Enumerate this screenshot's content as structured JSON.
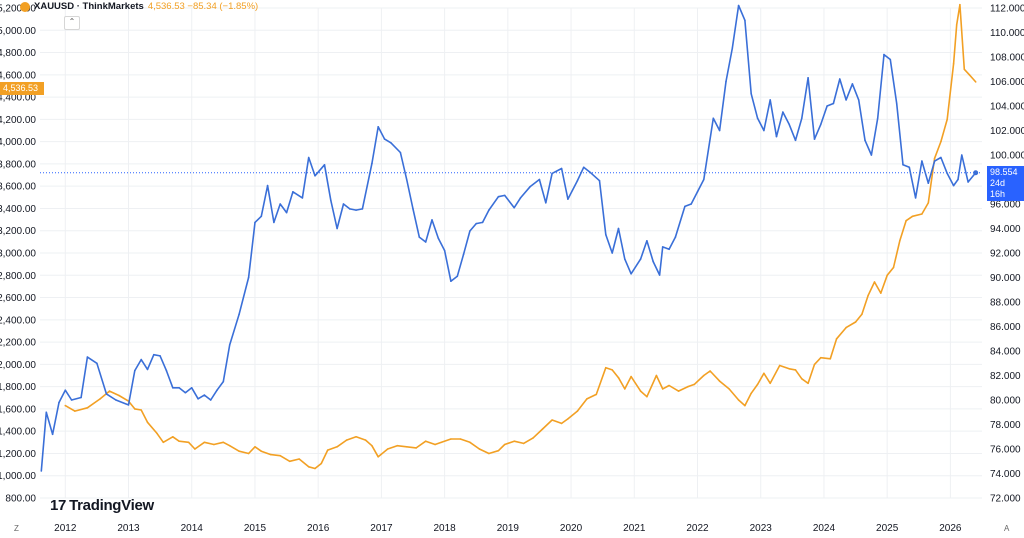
{
  "legend": {
    "symbol": "XAUUSD · ThinkMarkets",
    "value": "4,536.53 −85.34 (−1.85%)"
  },
  "badges": {
    "gold_price": "4,536.53",
    "dxy_price": "98.554",
    "dxy_countdown": "24d 16h"
  },
  "logo": {
    "mark": "17",
    "text": "TradingView"
  },
  "corners": {
    "left": "Z",
    "right": "A"
  },
  "colors": {
    "gold": "#f2a024",
    "dxy": "#3a6fd8",
    "grid": "#eef0f3",
    "price_line": "#2962ff"
  },
  "chart_data": {
    "type": "line",
    "x_ticks": [
      "2012",
      "2013",
      "2014",
      "2015",
      "2016",
      "2017",
      "2018",
      "2019",
      "2020",
      "2021",
      "2022",
      "2023",
      "2024",
      "2025",
      "2026"
    ],
    "left_axis": {
      "ticks": [
        "800.00",
        "1,000.00",
        "1,200.00",
        "1,400.00",
        "1,600.00",
        "1,800.00",
        "2,000.00",
        "2,200.00",
        "2,400.00",
        "2,600.00",
        "2,800.00",
        "3,000.00",
        "3,200.00",
        "3,400.00",
        "3,600.00",
        "3,800.00",
        "4,000.00",
        "4,200.00",
        "4,400.00",
        "4,600.00",
        "4,800.00",
        "5,000.00",
        "5,200.00"
      ],
      "range": [
        800,
        5200
      ]
    },
    "right_axis": {
      "ticks": [
        "72.000",
        "74.000",
        "76.000",
        "78.000",
        "80.000",
        "82.000",
        "84.000",
        "86.000",
        "88.000",
        "90.000",
        "92.000",
        "94.000",
        "96.000",
        "98.000",
        "100.000",
        "102.000",
        "104.000",
        "106.000",
        "108.000",
        "110.000",
        "112.000"
      ],
      "range": [
        72,
        112
      ]
    },
    "x_range": [
      2011.6,
      2026.5
    ],
    "price_line_value": 98.554,
    "series": [
      {
        "axis": "left",
        "color": "#f2a024",
        "points": [
          [
            2012.0,
            1630
          ],
          [
            2012.15,
            1580
          ],
          [
            2012.35,
            1610
          ],
          [
            2012.55,
            1690
          ],
          [
            2012.7,
            1760
          ],
          [
            2012.85,
            1720
          ],
          [
            2013.0,
            1670
          ],
          [
            2013.1,
            1600
          ],
          [
            2013.2,
            1590
          ],
          [
            2013.3,
            1480
          ],
          [
            2013.45,
            1380
          ],
          [
            2013.55,
            1300
          ],
          [
            2013.7,
            1350
          ],
          [
            2013.8,
            1310
          ],
          [
            2013.95,
            1300
          ],
          [
            2014.05,
            1240
          ],
          [
            2014.2,
            1300
          ],
          [
            2014.35,
            1280
          ],
          [
            2014.5,
            1300
          ],
          [
            2014.6,
            1270
          ],
          [
            2014.75,
            1220
          ],
          [
            2014.9,
            1200
          ],
          [
            2015.0,
            1260
          ],
          [
            2015.1,
            1220
          ],
          [
            2015.25,
            1190
          ],
          [
            2015.4,
            1180
          ],
          [
            2015.55,
            1130
          ],
          [
            2015.7,
            1150
          ],
          [
            2015.85,
            1080
          ],
          [
            2015.95,
            1065
          ],
          [
            2016.05,
            1110
          ],
          [
            2016.15,
            1230
          ],
          [
            2016.3,
            1260
          ],
          [
            2016.45,
            1320
          ],
          [
            2016.6,
            1350
          ],
          [
            2016.75,
            1320
          ],
          [
            2016.85,
            1270
          ],
          [
            2016.95,
            1170
          ],
          [
            2017.1,
            1240
          ],
          [
            2017.25,
            1270
          ],
          [
            2017.4,
            1260
          ],
          [
            2017.55,
            1250
          ],
          [
            2017.7,
            1310
          ],
          [
            2017.85,
            1280
          ],
          [
            2017.95,
            1300
          ],
          [
            2018.1,
            1330
          ],
          [
            2018.25,
            1330
          ],
          [
            2018.4,
            1300
          ],
          [
            2018.55,
            1240
          ],
          [
            2018.7,
            1200
          ],
          [
            2018.85,
            1225
          ],
          [
            2018.95,
            1280
          ],
          [
            2019.1,
            1310
          ],
          [
            2019.25,
            1290
          ],
          [
            2019.4,
            1340
          ],
          [
            2019.55,
            1420
          ],
          [
            2019.7,
            1500
          ],
          [
            2019.85,
            1470
          ],
          [
            2019.95,
            1510
          ],
          [
            2020.1,
            1580
          ],
          [
            2020.25,
            1690
          ],
          [
            2020.4,
            1730
          ],
          [
            2020.55,
            1970
          ],
          [
            2020.65,
            1950
          ],
          [
            2020.75,
            1880
          ],
          [
            2020.85,
            1780
          ],
          [
            2020.95,
            1890
          ],
          [
            2021.1,
            1760
          ],
          [
            2021.2,
            1710
          ],
          [
            2021.35,
            1900
          ],
          [
            2021.45,
            1780
          ],
          [
            2021.55,
            1810
          ],
          [
            2021.7,
            1760
          ],
          [
            2021.85,
            1800
          ],
          [
            2021.95,
            1820
          ],
          [
            2022.1,
            1900
          ],
          [
            2022.2,
            1940
          ],
          [
            2022.35,
            1850
          ],
          [
            2022.5,
            1780
          ],
          [
            2022.65,
            1680
          ],
          [
            2022.75,
            1630
          ],
          [
            2022.85,
            1740
          ],
          [
            2022.95,
            1820
          ],
          [
            2023.05,
            1920
          ],
          [
            2023.15,
            1830
          ],
          [
            2023.3,
            1990
          ],
          [
            2023.45,
            1960
          ],
          [
            2023.55,
            1950
          ],
          [
            2023.65,
            1870
          ],
          [
            2023.75,
            1830
          ],
          [
            2023.85,
            2000
          ],
          [
            2023.95,
            2060
          ],
          [
            2024.1,
            2050
          ],
          [
            2024.2,
            2230
          ],
          [
            2024.35,
            2330
          ],
          [
            2024.5,
            2380
          ],
          [
            2024.6,
            2450
          ],
          [
            2024.7,
            2620
          ],
          [
            2024.8,
            2740
          ],
          [
            2024.9,
            2640
          ],
          [
            2025.0,
            2800
          ],
          [
            2025.1,
            2870
          ],
          [
            2025.2,
            3110
          ],
          [
            2025.3,
            3290
          ],
          [
            2025.4,
            3330
          ],
          [
            2025.55,
            3350
          ],
          [
            2025.65,
            3450
          ],
          [
            2025.75,
            3850
          ],
          [
            2025.85,
            4000
          ],
          [
            2025.95,
            4200
          ],
          [
            2026.05,
            4700
          ],
          [
            2026.1,
            5050
          ],
          [
            2026.15,
            5230
          ],
          [
            2026.22,
            4650
          ],
          [
            2026.3,
            4600
          ],
          [
            2026.4,
            4536.53
          ]
        ]
      },
      {
        "axis": "right",
        "color": "#3a6fd8",
        "points": [
          [
            2011.62,
            74.2
          ],
          [
            2011.7,
            79.0
          ],
          [
            2011.8,
            77.2
          ],
          [
            2011.9,
            79.8
          ],
          [
            2012.0,
            80.8
          ],
          [
            2012.1,
            80.0
          ],
          [
            2012.25,
            80.2
          ],
          [
            2012.35,
            83.5
          ],
          [
            2012.5,
            83.0
          ],
          [
            2012.65,
            80.5
          ],
          [
            2012.8,
            80.0
          ],
          [
            2013.0,
            79.6
          ],
          [
            2013.1,
            82.4
          ],
          [
            2013.2,
            83.3
          ],
          [
            2013.3,
            82.5
          ],
          [
            2013.4,
            83.7
          ],
          [
            2013.5,
            83.6
          ],
          [
            2013.6,
            82.4
          ],
          [
            2013.7,
            81.0
          ],
          [
            2013.8,
            81.0
          ],
          [
            2013.9,
            80.6
          ],
          [
            2014.0,
            81.0
          ],
          [
            2014.1,
            80.1
          ],
          [
            2014.2,
            80.4
          ],
          [
            2014.3,
            80.0
          ],
          [
            2014.4,
            80.8
          ],
          [
            2014.5,
            81.5
          ],
          [
            2014.6,
            84.5
          ],
          [
            2014.75,
            87.0
          ],
          [
            2014.9,
            90.0
          ],
          [
            2015.0,
            94.5
          ],
          [
            2015.1,
            95.0
          ],
          [
            2015.2,
            97.5
          ],
          [
            2015.3,
            94.5
          ],
          [
            2015.4,
            96.0
          ],
          [
            2015.5,
            95.3
          ],
          [
            2015.6,
            97.0
          ],
          [
            2015.75,
            96.5
          ],
          [
            2015.85,
            99.8
          ],
          [
            2015.95,
            98.3
          ],
          [
            2016.1,
            99.2
          ],
          [
            2016.2,
            96.3
          ],
          [
            2016.3,
            94.0
          ],
          [
            2016.4,
            96.0
          ],
          [
            2016.5,
            95.6
          ],
          [
            2016.6,
            95.5
          ],
          [
            2016.7,
            95.6
          ],
          [
            2016.85,
            99.3
          ],
          [
            2016.95,
            102.3
          ],
          [
            2017.05,
            101.3
          ],
          [
            2017.15,
            101.0
          ],
          [
            2017.3,
            100.2
          ],
          [
            2017.4,
            98.0
          ],
          [
            2017.5,
            95.6
          ],
          [
            2017.6,
            93.3
          ],
          [
            2017.7,
            92.9
          ],
          [
            2017.8,
            94.7
          ],
          [
            2017.9,
            93.2
          ],
          [
            2018.0,
            92.2
          ],
          [
            2018.1,
            89.7
          ],
          [
            2018.2,
            90.1
          ],
          [
            2018.3,
            91.9
          ],
          [
            2018.4,
            93.8
          ],
          [
            2018.5,
            94.4
          ],
          [
            2018.6,
            94.5
          ],
          [
            2018.7,
            95.5
          ],
          [
            2018.85,
            96.6
          ],
          [
            2018.95,
            96.7
          ],
          [
            2019.1,
            95.7
          ],
          [
            2019.2,
            96.5
          ],
          [
            2019.35,
            97.4
          ],
          [
            2019.5,
            98.0
          ],
          [
            2019.6,
            96.1
          ],
          [
            2019.7,
            98.5
          ],
          [
            2019.85,
            98.9
          ],
          [
            2019.95,
            96.4
          ],
          [
            2020.1,
            97.9
          ],
          [
            2020.2,
            99.0
          ],
          [
            2020.3,
            98.6
          ],
          [
            2020.45,
            97.9
          ],
          [
            2020.55,
            93.5
          ],
          [
            2020.65,
            92.0
          ],
          [
            2020.75,
            94.0
          ],
          [
            2020.85,
            91.5
          ],
          [
            2020.95,
            90.3
          ],
          [
            2021.1,
            91.5
          ],
          [
            2021.2,
            93.0
          ],
          [
            2021.3,
            91.3
          ],
          [
            2021.4,
            90.2
          ],
          [
            2021.45,
            92.5
          ],
          [
            2021.55,
            92.3
          ],
          [
            2021.65,
            93.3
          ],
          [
            2021.8,
            95.8
          ],
          [
            2021.9,
            96.0
          ],
          [
            2022.0,
            97.0
          ],
          [
            2022.1,
            98.0
          ],
          [
            2022.25,
            103.0
          ],
          [
            2022.35,
            102.0
          ],
          [
            2022.45,
            106.0
          ],
          [
            2022.55,
            108.7
          ],
          [
            2022.65,
            112.2
          ],
          [
            2022.75,
            111.0
          ],
          [
            2022.85,
            105.0
          ],
          [
            2022.95,
            103.0
          ],
          [
            2023.05,
            102.0
          ],
          [
            2023.15,
            104.5
          ],
          [
            2023.25,
            101.5
          ],
          [
            2023.35,
            103.5
          ],
          [
            2023.45,
            102.5
          ],
          [
            2023.55,
            101.2
          ],
          [
            2023.65,
            103.0
          ],
          [
            2023.75,
            106.3
          ],
          [
            2023.85,
            101.3
          ],
          [
            2023.95,
            102.5
          ],
          [
            2024.05,
            104.0
          ],
          [
            2024.15,
            104.2
          ],
          [
            2024.25,
            106.2
          ],
          [
            2024.35,
            104.5
          ],
          [
            2024.45,
            105.8
          ],
          [
            2024.55,
            104.5
          ],
          [
            2024.65,
            101.2
          ],
          [
            2024.75,
            100.0
          ],
          [
            2024.85,
            103.0
          ],
          [
            2024.95,
            108.2
          ],
          [
            2025.05,
            107.8
          ],
          [
            2025.15,
            104.2
          ],
          [
            2025.25,
            99.2
          ],
          [
            2025.35,
            99.0
          ],
          [
            2025.45,
            96.5
          ],
          [
            2025.55,
            99.5
          ],
          [
            2025.65,
            97.7
          ],
          [
            2025.75,
            99.5
          ],
          [
            2025.85,
            99.8
          ],
          [
            2025.95,
            98.5
          ],
          [
            2026.05,
            97.5
          ],
          [
            2026.12,
            98.0
          ],
          [
            2026.18,
            100.0
          ],
          [
            2026.28,
            97.8
          ],
          [
            2026.4,
            98.554
          ]
        ]
      }
    ]
  }
}
